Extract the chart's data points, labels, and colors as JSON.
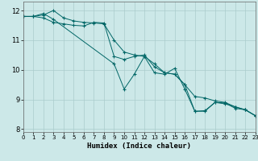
{
  "xlabel": "Humidex (Indice chaleur)",
  "ylabel": "",
  "bg_color": "#cce8e8",
  "grid_color": "#aacccc",
  "line_color": "#006666",
  "xlim": [
    0,
    23
  ],
  "ylim": [
    7.9,
    12.3
  ],
  "yticks": [
    8,
    9,
    10,
    11,
    12
  ],
  "xticks": [
    0,
    1,
    2,
    3,
    4,
    5,
    6,
    7,
    8,
    9,
    10,
    11,
    12,
    13,
    14,
    15,
    16,
    17,
    18,
    19,
    20,
    21,
    22,
    23
  ],
  "series": [
    {
      "x": [
        0,
        1,
        2,
        3,
        4,
        5,
        6,
        7,
        8,
        9,
        10,
        11,
        12,
        13,
        14,
        15,
        16,
        17,
        18,
        19,
        20,
        21,
        22,
        23
      ],
      "y": [
        11.8,
        11.8,
        11.85,
        12.0,
        11.75,
        11.65,
        11.6,
        11.58,
        11.55,
        11.0,
        10.6,
        10.5,
        10.45,
        10.2,
        9.9,
        9.85,
        9.5,
        9.1,
        9.05,
        8.95,
        8.9,
        8.75,
        8.65,
        8.45
      ]
    },
    {
      "x": [
        0,
        1,
        2,
        3,
        4,
        5,
        6,
        7,
        8,
        9,
        10,
        11,
        12,
        13,
        14,
        15,
        16,
        17,
        18,
        19,
        20,
        21,
        22,
        23
      ],
      "y": [
        11.8,
        11.8,
        11.75,
        11.6,
        11.55,
        11.5,
        11.48,
        11.6,
        11.58,
        10.45,
        10.35,
        10.45,
        10.5,
        10.1,
        9.9,
        9.85,
        9.5,
        8.6,
        8.6,
        8.9,
        8.85,
        8.75,
        8.65,
        8.45
      ]
    },
    {
      "x": [
        0,
        1,
        2,
        3,
        9,
        10,
        11,
        12,
        13,
        14,
        15,
        16,
        17,
        18,
        19,
        20,
        21,
        22,
        23
      ],
      "y": [
        11.8,
        11.8,
        11.9,
        11.7,
        10.2,
        9.35,
        9.85,
        10.45,
        9.9,
        9.85,
        10.05,
        9.35,
        8.6,
        8.62,
        8.9,
        8.88,
        8.7,
        8.65,
        8.45
      ]
    }
  ]
}
